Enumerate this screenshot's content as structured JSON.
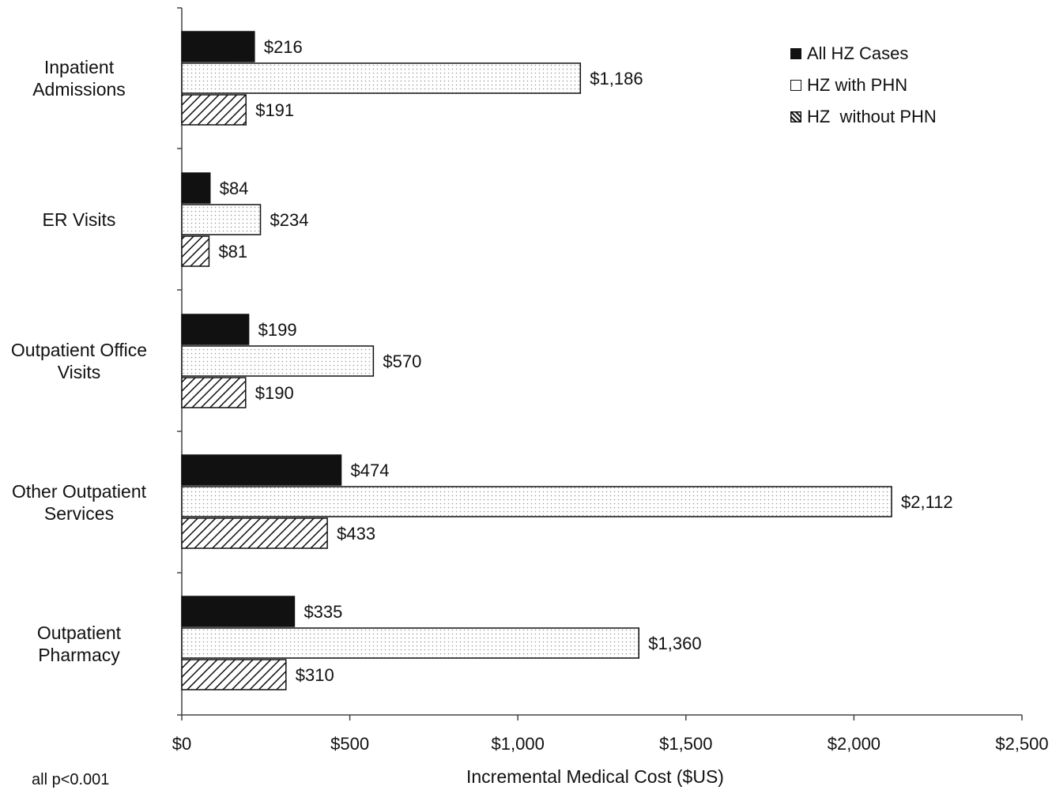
{
  "chart_data": {
    "type": "bar",
    "orientation": "horizontal",
    "categories": [
      "Inpatient\nAdmissions",
      "ER Visits",
      "Outpatient Office\nVisits",
      "Other Outpatient\nServices",
      "Outpatient\nPharmacy"
    ],
    "series": [
      {
        "name": "All HZ Cases",
        "values": [
          216,
          84,
          199,
          474,
          335
        ],
        "labels": [
          "$216",
          "$84",
          "$199",
          "$474",
          "$335"
        ],
        "fill": "solid",
        "color": "#111111"
      },
      {
        "name": "HZ with PHN",
        "values": [
          1186,
          234,
          570,
          2112,
          1360
        ],
        "labels": [
          "$1,186",
          "$234",
          "$570",
          "$2,112",
          "$1,360"
        ],
        "fill": "dotted",
        "color": "#ffffff"
      },
      {
        "name": "HZ  without PHN",
        "values": [
          191,
          81,
          190,
          433,
          310
        ],
        "labels": [
          "$191",
          "$81",
          "$190",
          "$433",
          "$310"
        ],
        "fill": "hatched",
        "color": "#ffffff"
      }
    ],
    "xlabel": "Incremental Medical Cost ($US)",
    "ylabel": "",
    "xlim": [
      0,
      2500
    ],
    "xticks": [
      0,
      500,
      1000,
      1500,
      2000,
      2500
    ],
    "xtick_labels": [
      "$0",
      "$500",
      "$1,000",
      "$1,500",
      "$2,000",
      "$2,500"
    ],
    "legend_position": "top-right",
    "grid": false
  },
  "footnote": "all p<0.001"
}
